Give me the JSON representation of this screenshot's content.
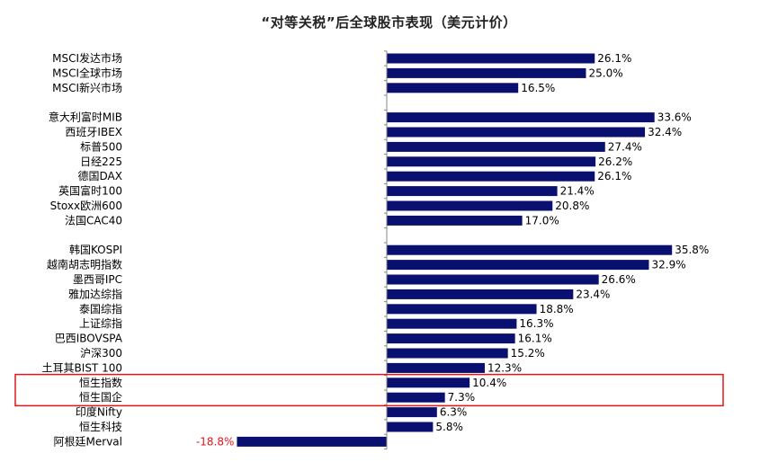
{
  "chart_data": {
    "type": "bar",
    "orientation": "horizontal",
    "title": "“对等关税”后全球股市表现（美元计价）",
    "value_suffix": "%",
    "bar_color": "#0a1070",
    "negative_label_color": "#e0161b",
    "highlight_color": "#e0161b",
    "highlighted": [
      "恒生指数",
      "恒生国企"
    ],
    "groups": [
      {
        "categories": [
          "MSCI发达市场",
          "MSCI全球市场",
          "MSCI新兴市场"
        ],
        "values": [
          26.1,
          25.0,
          16.5
        ]
      },
      {
        "categories": [
          "意大利富时MIB",
          "西班牙IBEX",
          "标普500",
          "日经225",
          "德国DAX",
          "英国富时100",
          "Stoxx欧洲600",
          "法国CAC40"
        ],
        "values": [
          33.6,
          32.4,
          27.4,
          26.2,
          26.1,
          21.4,
          20.8,
          17.0
        ]
      },
      {
        "categories": [
          "韩国KOSPI",
          "越南胡志明指数",
          "墨西哥IPC",
          "雅加达综指",
          "泰国综指",
          "上证综指",
          "巴西IBOVSPA",
          "沪深300",
          "土耳其BIST 100",
          "恒生指数",
          "恒生国企",
          "印度Nifty",
          "恒生科技",
          "阿根廷Merval"
        ],
        "values": [
          35.8,
          32.9,
          26.6,
          23.4,
          18.8,
          16.3,
          16.1,
          15.2,
          12.3,
          10.4,
          7.3,
          6.3,
          5.8,
          -18.8
        ]
      }
    ]
  }
}
